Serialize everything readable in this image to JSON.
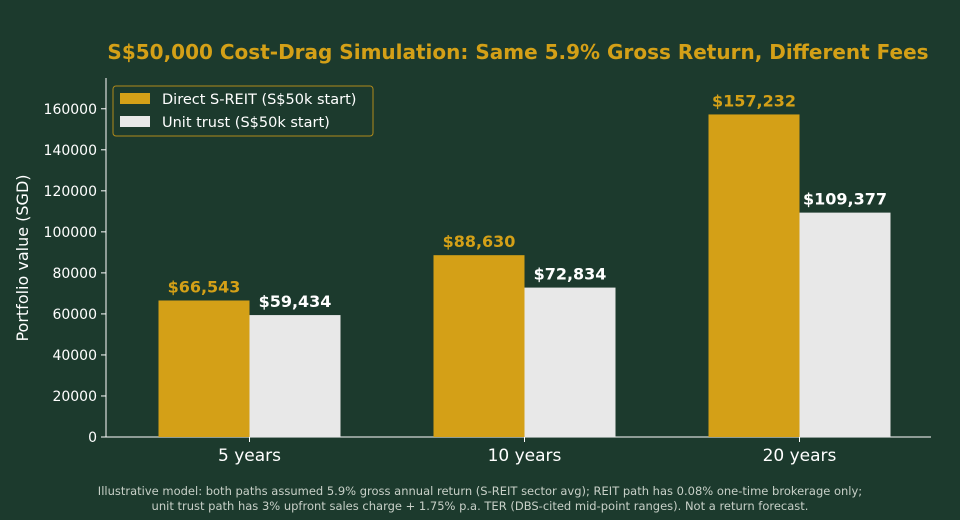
{
  "chart_data": {
    "type": "bar",
    "title": "S$50,000 Cost-Drag Simulation: Same 5.9% Gross Return, Different Fees",
    "xlabel": "",
    "ylabel": "Portfolio value (SGD)",
    "ylim": [
      0,
      175000
    ],
    "yticks": [
      0,
      20000,
      40000,
      60000,
      80000,
      100000,
      120000,
      140000,
      160000
    ],
    "categories": [
      "5 years",
      "10 years",
      "20 years"
    ],
    "series": [
      {
        "name": "Direct S-REIT (S$50k start)",
        "color": "#d4a017",
        "label_color": "#d4a017",
        "values": [
          66543,
          88630,
          157232
        ],
        "labels": [
          "$66,543",
          "$88,630",
          "$157,232"
        ]
      },
      {
        "name": "Unit trust (S$50k start)",
        "color": "#e8e8e8",
        "label_color": "#ffffff",
        "values": [
          59434,
          72834,
          109377
        ],
        "labels": [
          "$59,434",
          "$72,834",
          "$109,377"
        ]
      }
    ],
    "legend_position": "top-left",
    "grid": false
  },
  "footnote": {
    "line1": "Illustrative model: both paths assumed 5.9% gross annual return (S-REIT sector avg); REIT path has 0.08% one-time brokerage only;",
    "line2": "unit trust path has 3% upfront sales charge + 1.75% p.a. TER (DBS-cited mid-point ranges). Not a return forecast."
  },
  "colors": {
    "background": "#1c3a2d",
    "accent": "#d4a017",
    "axis": "#ffffff"
  }
}
